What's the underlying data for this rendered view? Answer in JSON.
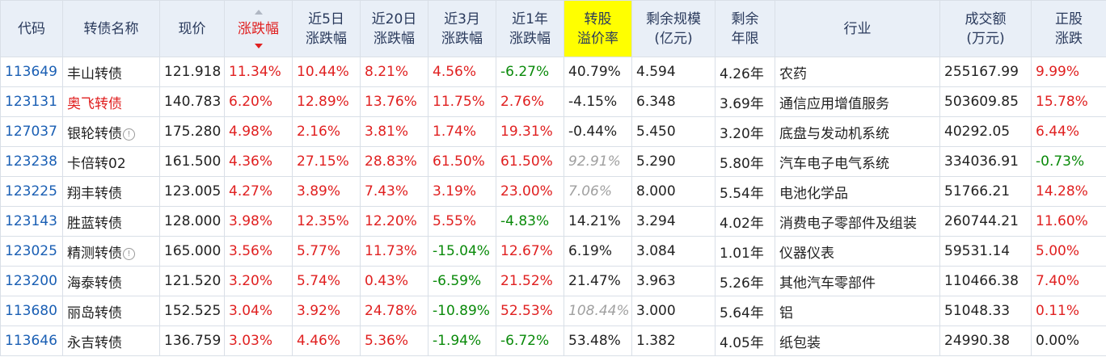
{
  "headers": {
    "code": "代码",
    "name": "转债名称",
    "price": "现价",
    "change": "涨跌幅",
    "chg5_l1": "近5日",
    "chg5_l2": "涨跌幅",
    "chg20_l1": "近20日",
    "chg20_l2": "涨跌幅",
    "chg3m_l1": "近3月",
    "chg3m_l2": "涨跌幅",
    "chg1y_l1": "近1年",
    "chg1y_l2": "涨跌幅",
    "premium_l1": "转股",
    "premium_l2": "溢价率",
    "scale_l1": "剩余规模",
    "scale_l2": "(亿元)",
    "years_l1": "剩余",
    "years_l2": "年限",
    "industry": "行业",
    "volume_l1": "成交额",
    "volume_l2": "(万元)",
    "stock_l1": "正股",
    "stock_l2": "涨跌"
  },
  "rows": [
    {
      "code": "113649",
      "name": "丰山转债",
      "price": "121.918",
      "change": "11.34%",
      "chg5": "10.44%",
      "chg20": "8.21%",
      "chg3m": "4.56%",
      "chg1y": "-6.27%",
      "premium": "40.79%",
      "scale": "4.594",
      "years": "4.26年",
      "industry": "农药",
      "volume": "255167.99",
      "stock": "9.99%"
    },
    {
      "code": "123131",
      "name": "奥飞转债",
      "price": "140.783",
      "change": "6.20%",
      "chg5": "12.89%",
      "chg20": "13.76%",
      "chg3m": "11.75%",
      "chg1y": "2.76%",
      "premium": "-4.15%",
      "scale": "6.348",
      "years": "3.69年",
      "industry": "通信应用增值服务",
      "volume": "503609.85",
      "stock": "15.78%"
    },
    {
      "code": "127037",
      "name": "银轮转债",
      "price": "175.280",
      "change": "4.98%",
      "chg5": "2.16%",
      "chg20": "3.81%",
      "chg3m": "1.74%",
      "chg1y": "19.31%",
      "premium": "-0.44%",
      "scale": "5.450",
      "years": "3.20年",
      "industry": "底盘与发动机系统",
      "volume": "40292.05",
      "stock": "6.44%"
    },
    {
      "code": "123238",
      "name": "卡倍转02",
      "price": "161.500",
      "change": "4.36%",
      "chg5": "27.15%",
      "chg20": "28.83%",
      "chg3m": "61.50%",
      "chg1y": "61.50%",
      "premium": "92.91%",
      "scale": "5.290",
      "years": "5.80年",
      "industry": "汽车电子电气系统",
      "volume": "334036.91",
      "stock": "-0.73%"
    },
    {
      "code": "123225",
      "name": "翔丰转债",
      "price": "123.005",
      "change": "4.27%",
      "chg5": "3.89%",
      "chg20": "7.43%",
      "chg3m": "3.19%",
      "chg1y": "23.00%",
      "premium": "7.06%",
      "scale": "8.000",
      "years": "5.54年",
      "industry": "电池化学品",
      "volume": "51766.21",
      "stock": "14.28%"
    },
    {
      "code": "123143",
      "name": "胜蓝转债",
      "price": "128.000",
      "change": "3.98%",
      "chg5": "12.35%",
      "chg20": "12.20%",
      "chg3m": "5.55%",
      "chg1y": "-4.83%",
      "premium": "14.21%",
      "scale": "3.294",
      "years": "4.02年",
      "industry": "消费电子零部件及组装",
      "volume": "260744.21",
      "stock": "11.60%"
    },
    {
      "code": "123025",
      "name": "精测转债",
      "price": "165.000",
      "change": "3.56%",
      "chg5": "5.77%",
      "chg20": "11.73%",
      "chg3m": "-15.04%",
      "chg1y": "12.67%",
      "premium": "6.19%",
      "scale": "3.084",
      "years": "1.01年",
      "industry": "仪器仪表",
      "volume": "59531.14",
      "stock": "5.00%"
    },
    {
      "code": "123200",
      "name": "海泰转债",
      "price": "121.520",
      "change": "3.20%",
      "chg5": "5.74%",
      "chg20": "0.43%",
      "chg3m": "-6.59%",
      "chg1y": "21.52%",
      "premium": "21.47%",
      "scale": "3.963",
      "years": "5.26年",
      "industry": "其他汽车零部件",
      "volume": "110466.38",
      "stock": "7.40%"
    },
    {
      "code": "113680",
      "name": "丽岛转债",
      "price": "152.525",
      "change": "3.04%",
      "chg5": "3.92%",
      "chg20": "24.78%",
      "chg3m": "-10.89%",
      "chg1y": "52.53%",
      "premium": "108.44%",
      "scale": "3.000",
      "years": "5.64年",
      "industry": "铝",
      "volume": "51048.33",
      "stock": "0.11%"
    },
    {
      "code": "113646",
      "name": "永吉转债",
      "price": "136.759",
      "change": "3.03%",
      "chg5": "4.46%",
      "chg20": "5.36%",
      "chg3m": "-1.94%",
      "chg1y": "-6.72%",
      "premium": "53.48%",
      "scale": "1.382",
      "years": "4.05年",
      "industry": "纸包装",
      "volume": "24990.38",
      "stock": "0.00%"
    }
  ],
  "info_icon_glyph": "!",
  "colors": {
    "up": "#e02020",
    "down": "#0a8a0a",
    "link": "#1a5fb4",
    "header_bg": "#e9eff7",
    "premium_highlight": "#ffff00"
  }
}
